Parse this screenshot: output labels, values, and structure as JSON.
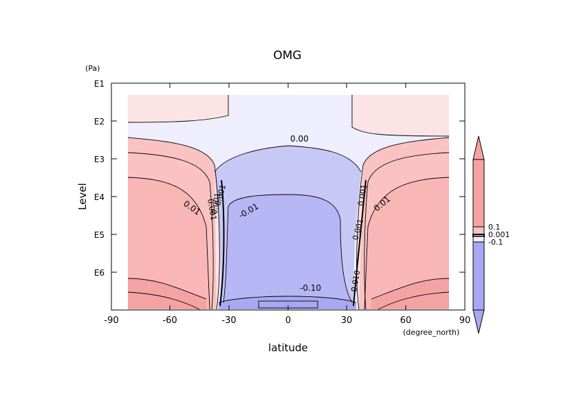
{
  "chart_data": {
    "type": "heatmap",
    "title": "OMG",
    "xlabel": "latitude",
    "ylabel": "Level",
    "xunit": "(degree_north)",
    "yunit": "(Pa)",
    "xlim": [
      -90,
      90
    ],
    "ylim": [
      "E1",
      "E7"
    ],
    "x_ticks": [
      "-90",
      "-60",
      "-30",
      "0",
      "30",
      "60",
      "90"
    ],
    "y_ticks": [
      "E1",
      "E2",
      "E3",
      "E4",
      "E5",
      "E6"
    ],
    "y_scale": "log",
    "contour_labels": [
      "0.00",
      "0.01",
      "0.01",
      "-0.01",
      "-0.10",
      "0.001",
      "0.001",
      "0.001",
      "0.001",
      "0.001",
      "0.010"
    ],
    "colorbar": {
      "tick_labels": [
        "0.1",
        "0.001",
        "-0.1"
      ],
      "colors": {
        "pos_strong": "#f4a3a3",
        "pos_mid": "#fbc2c2",
        "pos_weak": "#fde4e4",
        "neg_weak": "#eeeefc",
        "neg_mid": "#c8c8f6",
        "neg_strong": "#a8a8f2"
      }
    }
  }
}
